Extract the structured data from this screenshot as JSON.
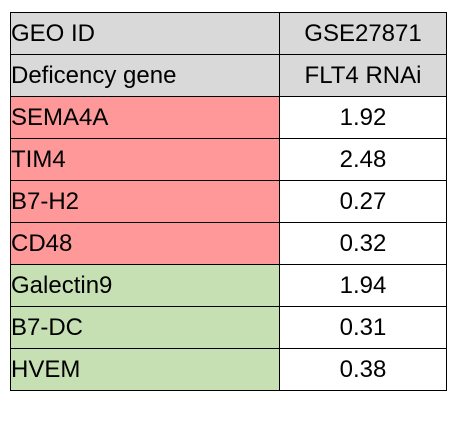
{
  "header": {
    "row1": {
      "label": "GEO ID",
      "value": "GSE27871"
    },
    "row2": {
      "label": "Deficency gene",
      "value": "FLT4 RNAi"
    }
  },
  "colors": {
    "header_bg": "#d9d9d9",
    "red_group_bg": "#ff9999",
    "green_group_bg": "#c6e0b4",
    "value_up": "#a50021",
    "value_down": "#00a550"
  },
  "rows": [
    {
      "gene": "SEMA4A",
      "value": "1.92",
      "group": "red",
      "direction": "up"
    },
    {
      "gene": "TIM4",
      "value": "2.48",
      "group": "red",
      "direction": "up"
    },
    {
      "gene": "B7-H2",
      "value": "0.27",
      "group": "red",
      "direction": "down"
    },
    {
      "gene": "CD48",
      "value": "0.32",
      "group": "red",
      "direction": "down"
    },
    {
      "gene": "Galectin9",
      "value": "1.94",
      "group": "green",
      "direction": "up"
    },
    {
      "gene": "B7-DC",
      "value": "0.31",
      "group": "green",
      "direction": "down"
    },
    {
      "gene": "HVEM",
      "value": "0.38",
      "group": "green",
      "direction": "down"
    }
  ]
}
